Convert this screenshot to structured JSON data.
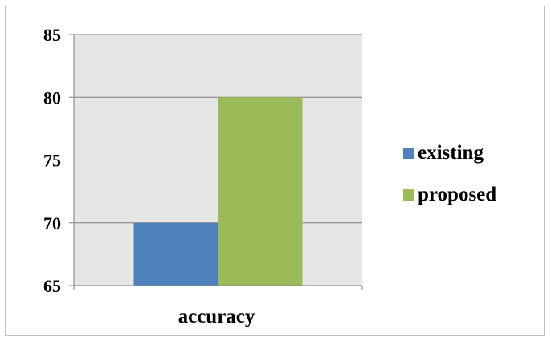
{
  "chart_data": {
    "type": "bar",
    "categories": [
      "accuracy"
    ],
    "series": [
      {
        "name": "existing",
        "values": [
          70
        ],
        "color": "#4f81bd"
      },
      {
        "name": "proposed",
        "values": [
          80
        ],
        "color": "#9bbb59"
      }
    ],
    "ylim": [
      65,
      85
    ],
    "yticks": [
      65,
      70,
      75,
      80,
      85
    ],
    "ytick_labels": [
      "65",
      "70",
      "75",
      "80",
      "85"
    ],
    "grid": true,
    "legend_position": "right",
    "plot_background": "#e6e6e6",
    "gridline_color": "#7f7f7f"
  }
}
